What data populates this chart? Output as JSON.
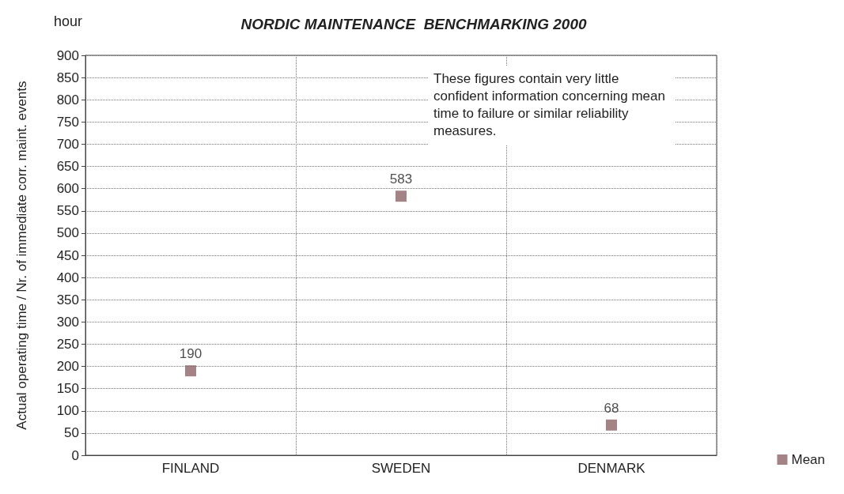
{
  "chart_data": {
    "type": "scatter",
    "title": "NORDIC MAINTENANCE  BENCHMARKING 2000",
    "ylabel": "Actual operating time / Nr. of immediate corr. maint. events",
    "annotations": [
      "hour",
      "These figures contain very little confident information concerning mean time to failure or similar reliability measures."
    ],
    "categories": [
      "FINLAND",
      "SWEDEN",
      "DENMARK"
    ],
    "series": [
      {
        "name": "Mean",
        "color": "#8c6468",
        "values": [
          190,
          583,
          68
        ]
      }
    ],
    "ylim": [
      0,
      900
    ],
    "yticks": [
      0,
      50,
      100,
      150,
      200,
      250,
      300,
      350,
      400,
      450,
      500,
      550,
      600,
      650,
      700,
      750,
      800,
      850,
      900
    ],
    "grid": true,
    "legend": "bottom right",
    "marker": "square",
    "data_labels": true
  }
}
